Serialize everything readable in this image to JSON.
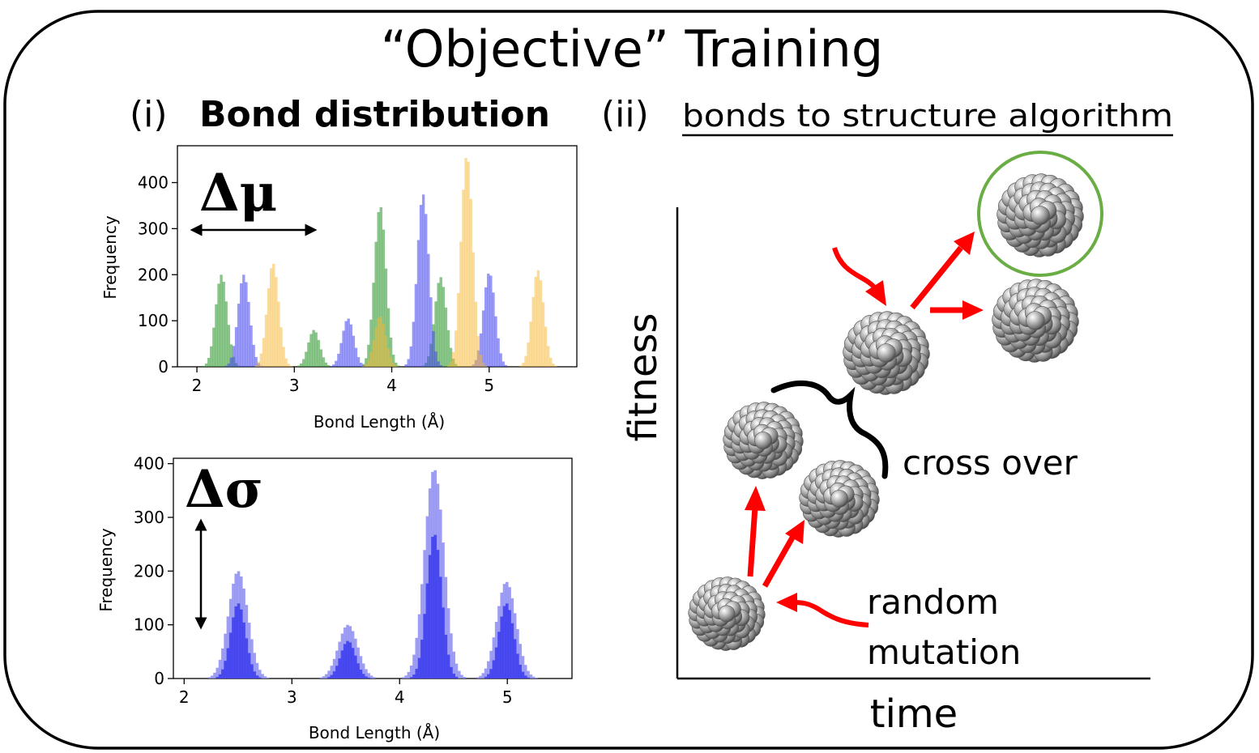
{
  "title": "“Objective” Training",
  "panel_i": {
    "marker": "(i)",
    "heading": "Bond distribution",
    "delta_mu": "Δμ",
    "delta_sigma": "Δσ"
  },
  "panel_ii": {
    "marker": "(ii)",
    "heading": "bonds to structure algorithm",
    "y_axis_label": "fitness",
    "x_axis_label": "time",
    "cross_over_label": "cross over",
    "random_label": "random",
    "mutation_label": "mutation"
  },
  "colors": {
    "green": "#3a9e3a",
    "blue": "#4444ee",
    "orange": "#f7b733",
    "arrow_red": "#ff0000",
    "circle_green": "#6aad44",
    "sphere_grey": "#9a9a9a"
  },
  "chart_data": [
    {
      "type": "bar",
      "subtype": "histogram",
      "xlabel": "Bond Length (Å)",
      "ylabel": "Frequency",
      "xlim": [
        1.8,
        5.9
      ],
      "ylim": [
        0,
        480
      ],
      "x_ticks": [
        2,
        3,
        4,
        5
      ],
      "y_ticks": [
        0,
        100,
        200,
        300,
        400
      ],
      "series": [
        {
          "color": "#3a9e3a",
          "peaks": [
            {
              "center": 2.25,
              "height": 200,
              "width": 0.06
            },
            {
              "center": 3.2,
              "height": 80,
              "width": 0.06
            },
            {
              "center": 3.88,
              "height": 350,
              "width": 0.06
            },
            {
              "center": 4.5,
              "height": 195,
              "width": 0.06
            }
          ]
        },
        {
          "color": "#4444ee",
          "peaks": [
            {
              "center": 2.48,
              "height": 200,
              "width": 0.06
            },
            {
              "center": 3.55,
              "height": 105,
              "width": 0.06
            },
            {
              "center": 4.32,
              "height": 375,
              "width": 0.06
            },
            {
              "center": 5.0,
              "height": 205,
              "width": 0.06
            }
          ]
        },
        {
          "color": "#f7b733",
          "peaks": [
            {
              "center": 2.78,
              "height": 225,
              "width": 0.06
            },
            {
              "center": 3.88,
              "height": 110,
              "width": 0.06
            },
            {
              "center": 4.77,
              "height": 460,
              "width": 0.06
            },
            {
              "center": 5.5,
              "height": 210,
              "width": 0.06
            }
          ]
        }
      ]
    },
    {
      "type": "bar",
      "subtype": "histogram",
      "xlabel": "Bond Length (Å)",
      "ylabel": "Frequency",
      "xlim": [
        1.9,
        5.6
      ],
      "ylim": [
        0,
        410
      ],
      "x_ticks": [
        2,
        3,
        4,
        5
      ],
      "y_ticks": [
        0,
        100,
        200,
        300,
        400
      ],
      "series": [
        {
          "color": "#8c8cf2",
          "peaks": [
            {
              "center": 2.5,
              "height": 200,
              "width": 0.09
            },
            {
              "center": 3.52,
              "height": 100,
              "width": 0.09
            },
            {
              "center": 4.32,
              "height": 390,
              "width": 0.09
            },
            {
              "center": 4.99,
              "height": 180,
              "width": 0.09
            }
          ]
        },
        {
          "color": "#3b3bee",
          "peaks": [
            {
              "center": 2.5,
              "height": 140,
              "width": 0.07
            },
            {
              "center": 3.52,
              "height": 70,
              "width": 0.07
            },
            {
              "center": 4.32,
              "height": 270,
              "width": 0.07
            },
            {
              "center": 4.99,
              "height": 140,
              "width": 0.07
            }
          ]
        }
      ]
    }
  ]
}
